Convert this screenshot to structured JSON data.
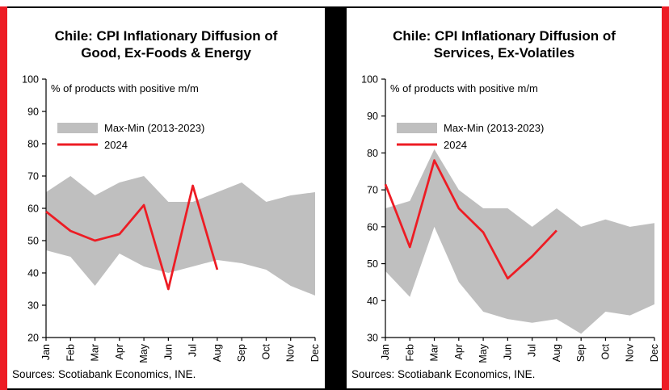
{
  "colors": {
    "accent_red": "#ed1c24",
    "divider_black": "#000000",
    "band_gray": "#bfbfbf",
    "line_red": "#ed1c24"
  },
  "chart_data": [
    {
      "type": "line",
      "title": "Chile: CPI Inflationary Diffusion of Good, Ex-Foods & Energy",
      "title_lines": [
        "Chile: CPI Inflationary Diffusion of",
        "Good, Ex-Foods & Energy"
      ],
      "subtitle": "% of products with positive m/m",
      "categories": [
        "Jan",
        "Feb",
        "Mar",
        "Apr",
        "May",
        "Jun",
        "Jul",
        "Aug",
        "Sep",
        "Oct",
        "Nov",
        "Dec"
      ],
      "ylim": [
        20,
        100
      ],
      "ytick_step": 10,
      "grid": "off",
      "legend_position": "inside-top-left",
      "series": [
        {
          "name": "Max-Min (2013-2023)",
          "type": "band",
          "max": [
            65,
            70,
            64,
            68,
            70,
            62,
            62,
            65,
            68,
            62,
            64,
            65
          ],
          "min": [
            47,
            45,
            36,
            46,
            42,
            40,
            42,
            44,
            43,
            41,
            36,
            33
          ]
        },
        {
          "name": "2024",
          "type": "line",
          "values": [
            59,
            53,
            50,
            52,
            61,
            35,
            67,
            41
          ]
        }
      ],
      "source": "Sources: Scotiabank Economics, INE."
    },
    {
      "type": "line",
      "title": "Chile: CPI Inflationary Diffusion of Services, Ex-Volatiles",
      "title_lines": [
        "Chile: CPI Inflationary Diffusion of",
        "Services, Ex-Volatiles"
      ],
      "subtitle": "% of products with positive m/m",
      "categories": [
        "Jan",
        "Feb",
        "Mar",
        "Apr",
        "May",
        "Jun",
        "Jul",
        "Aug",
        "Sep",
        "Oct",
        "Nov",
        "Dec"
      ],
      "ylim": [
        30,
        100
      ],
      "ytick_step": 10,
      "grid": "off",
      "legend_position": "inside-top-left",
      "series": [
        {
          "name": "Max-Min (2013-2023)",
          "type": "band",
          "max": [
            65,
            67,
            81,
            70,
            65,
            65,
            60,
            65,
            60,
            62,
            60,
            61
          ],
          "min": [
            48,
            41,
            60,
            45,
            37,
            35,
            34,
            35,
            31,
            37,
            36,
            39
          ]
        },
        {
          "name": "2024",
          "type": "line",
          "values": [
            71.5,
            54.5,
            78,
            65,
            58.5,
            46,
            52,
            59
          ]
        }
      ],
      "source": "Sources: Scotiabank Economics, INE."
    }
  ]
}
